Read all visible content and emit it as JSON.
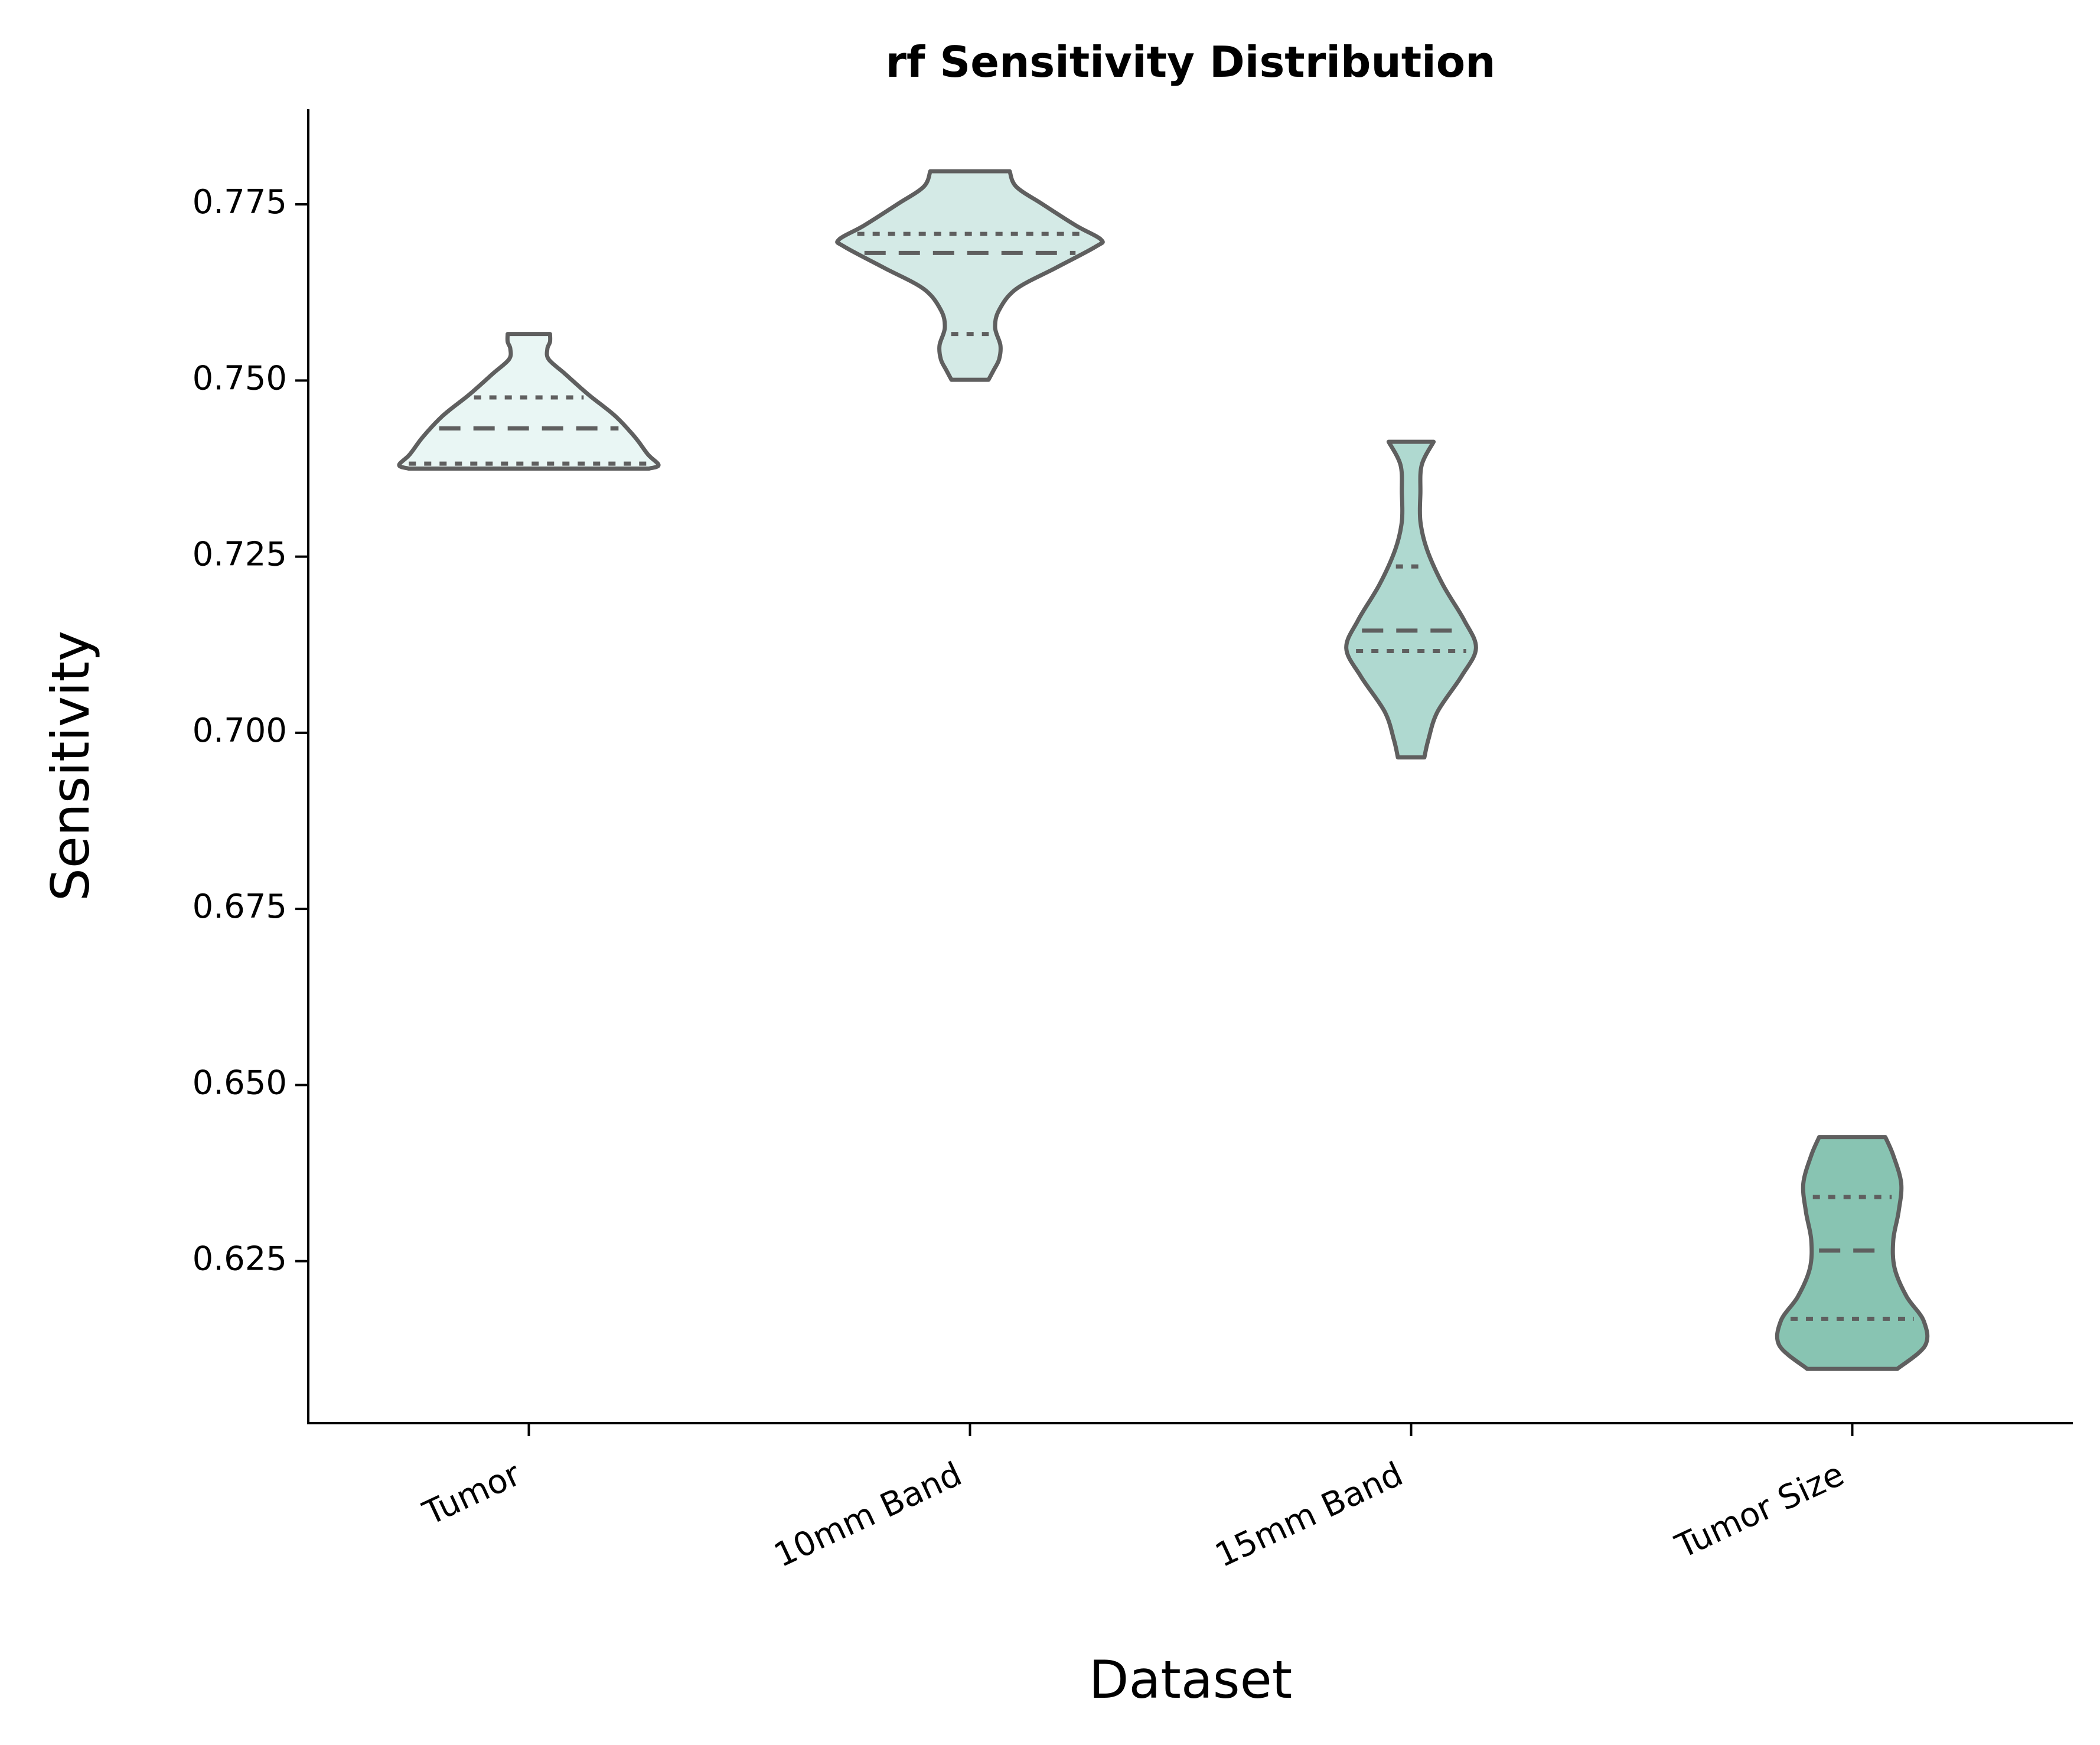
{
  "chart_data": {
    "type": "violin",
    "title": "rf Sensitivity Distribution",
    "xlabel": "Dataset",
    "ylabel": "Sensitivity",
    "categories": [
      "Tumor",
      "10mm Band",
      "15mm Band",
      "Tumor Size"
    ],
    "ylim": [
      0.602,
      0.7885
    ],
    "yticks": [
      0.625,
      0.65,
      0.675,
      0.7,
      0.725,
      0.75,
      0.775
    ],
    "ytick_labels": [
      "0.625",
      "0.650",
      "0.675",
      "0.700",
      "0.725",
      "0.750",
      "0.775"
    ],
    "grid": false,
    "legend": "none",
    "series": [
      {
        "category": "Tumor",
        "color": "#e9f6f4",
        "min": 0.7375,
        "max": 0.7566,
        "q1": 0.7382,
        "median": 0.7432,
        "q3": 0.7476,
        "profile": [
          [
            0.7375,
            0.91
          ],
          [
            0.738,
            0.98
          ],
          [
            0.7395,
            0.9
          ],
          [
            0.742,
            0.8
          ],
          [
            0.745,
            0.65
          ],
          [
            0.748,
            0.45
          ],
          [
            0.751,
            0.27
          ],
          [
            0.753,
            0.15
          ],
          [
            0.7545,
            0.14
          ],
          [
            0.7555,
            0.16
          ],
          [
            0.7566,
            0.16
          ]
        ]
      },
      {
        "category": "10mm Band",
        "color": "#d4eae6",
        "min": 0.7501,
        "max": 0.7797,
        "q1": 0.7566,
        "median": 0.7681,
        "q3": 0.7708,
        "profile": [
          [
            0.7501,
            0.14
          ],
          [
            0.7515,
            0.18
          ],
          [
            0.753,
            0.22
          ],
          [
            0.755,
            0.23
          ],
          [
            0.7575,
            0.19
          ],
          [
            0.76,
            0.22
          ],
          [
            0.763,
            0.35
          ],
          [
            0.766,
            0.65
          ],
          [
            0.769,
            0.95
          ],
          [
            0.77,
            0.99
          ],
          [
            0.772,
            0.8
          ],
          [
            0.775,
            0.55
          ],
          [
            0.7775,
            0.35
          ],
          [
            0.7797,
            0.3
          ]
        ]
      },
      {
        "category": "15mm Band",
        "color": "#afd9d0",
        "min": 0.6965,
        "max": 0.7413,
        "q1": 0.7116,
        "median": 0.7145,
        "q3": 0.7236,
        "profile": [
          [
            0.6965,
            0.1
          ],
          [
            0.699,
            0.13
          ],
          [
            0.703,
            0.2
          ],
          [
            0.708,
            0.38
          ],
          [
            0.712,
            0.49
          ],
          [
            0.716,
            0.4
          ],
          [
            0.721,
            0.24
          ],
          [
            0.726,
            0.12
          ],
          [
            0.73,
            0.07
          ],
          [
            0.734,
            0.07
          ],
          [
            0.738,
            0.08
          ],
          [
            0.7413,
            0.17
          ]
        ]
      },
      {
        "category": "Tumor Size",
        "color": "#88c4b2",
        "min": 0.6097,
        "max": 0.6426,
        "q1": 0.6168,
        "median": 0.6265,
        "q3": 0.6341,
        "profile": [
          [
            0.6097,
            0.34
          ],
          [
            0.613,
            0.55
          ],
          [
            0.6165,
            0.54
          ],
          [
            0.62,
            0.41
          ],
          [
            0.624,
            0.32
          ],
          [
            0.628,
            0.31
          ],
          [
            0.632,
            0.35
          ],
          [
            0.636,
            0.37
          ],
          [
            0.64,
            0.31
          ],
          [
            0.6426,
            0.25
          ]
        ]
      }
    ]
  }
}
